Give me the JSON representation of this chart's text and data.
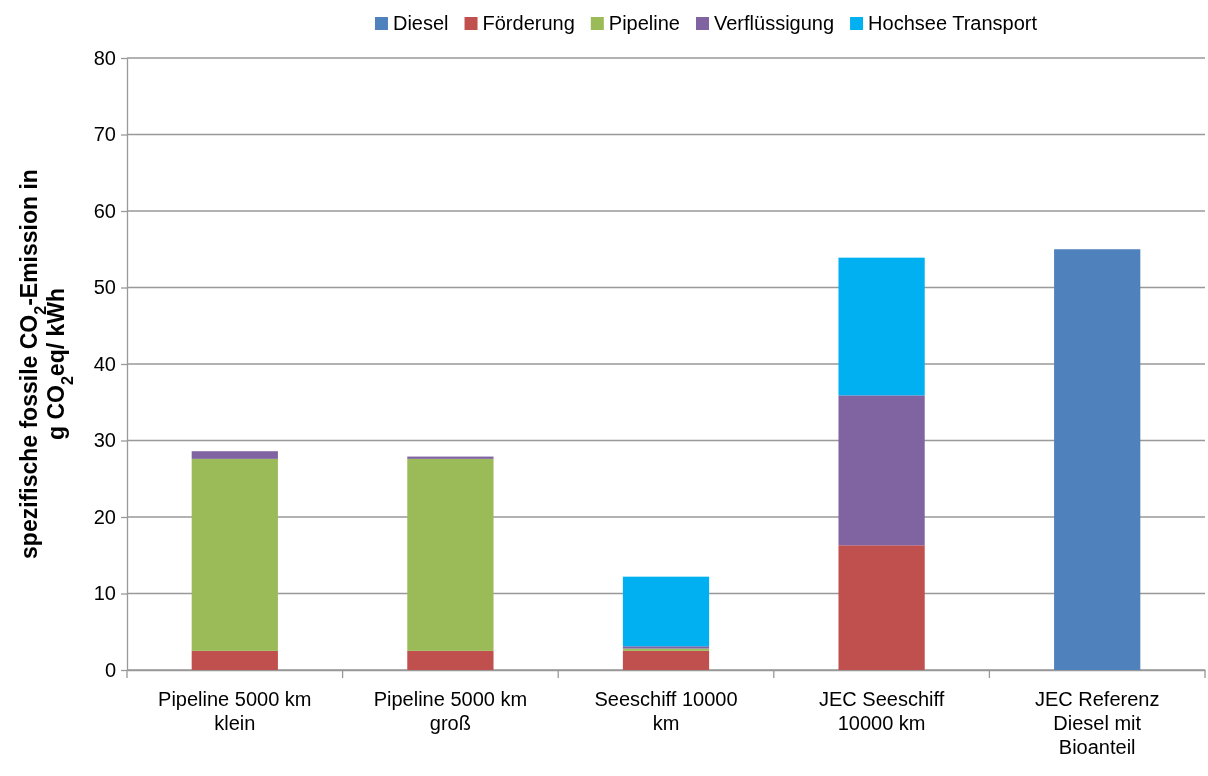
{
  "chart_data": {
    "type": "bar",
    "stacked": true,
    "ylabel": "spezifische fossile CO$_{2}$-Emission in\ng CO$_{2}$eq/ kWh",
    "categories": [
      "Pipeline 5000 km\nklein",
      "Pipeline 5000 km\ngroß",
      "Seeschiff 10000\nkm",
      "JEC Seeschiff\n10000 km",
      "JEC Referenz\nDiesel mit\nBioanteil"
    ],
    "series": [
      {
        "name": "Diesel",
        "color": "#4f81bd",
        "values": [
          null,
          null,
          null,
          null,
          55
        ]
      },
      {
        "name": "Förderung",
        "color": "#c0504d",
        "values": [
          2.5,
          2.5,
          2.5,
          16.3,
          null
        ]
      },
      {
        "name": "Pipeline",
        "color": "#9bbb59",
        "values": [
          25.1,
          25.1,
          0.3,
          null,
          null
        ]
      },
      {
        "name": "Verflüssigung",
        "color": "#8064a2",
        "values": [
          1.0,
          0.3,
          0.3,
          19.6,
          null
        ]
      },
      {
        "name": "Hochsee Transport",
        "color": "#00b0f0",
        "values": [
          null,
          null,
          9.1,
          18.0,
          null
        ]
      }
    ],
    "ylim": [
      0,
      80
    ],
    "yticks": [
      0,
      10,
      20,
      30,
      40,
      50,
      60,
      70,
      80
    ],
    "grid": "y",
    "legend": "top"
  }
}
